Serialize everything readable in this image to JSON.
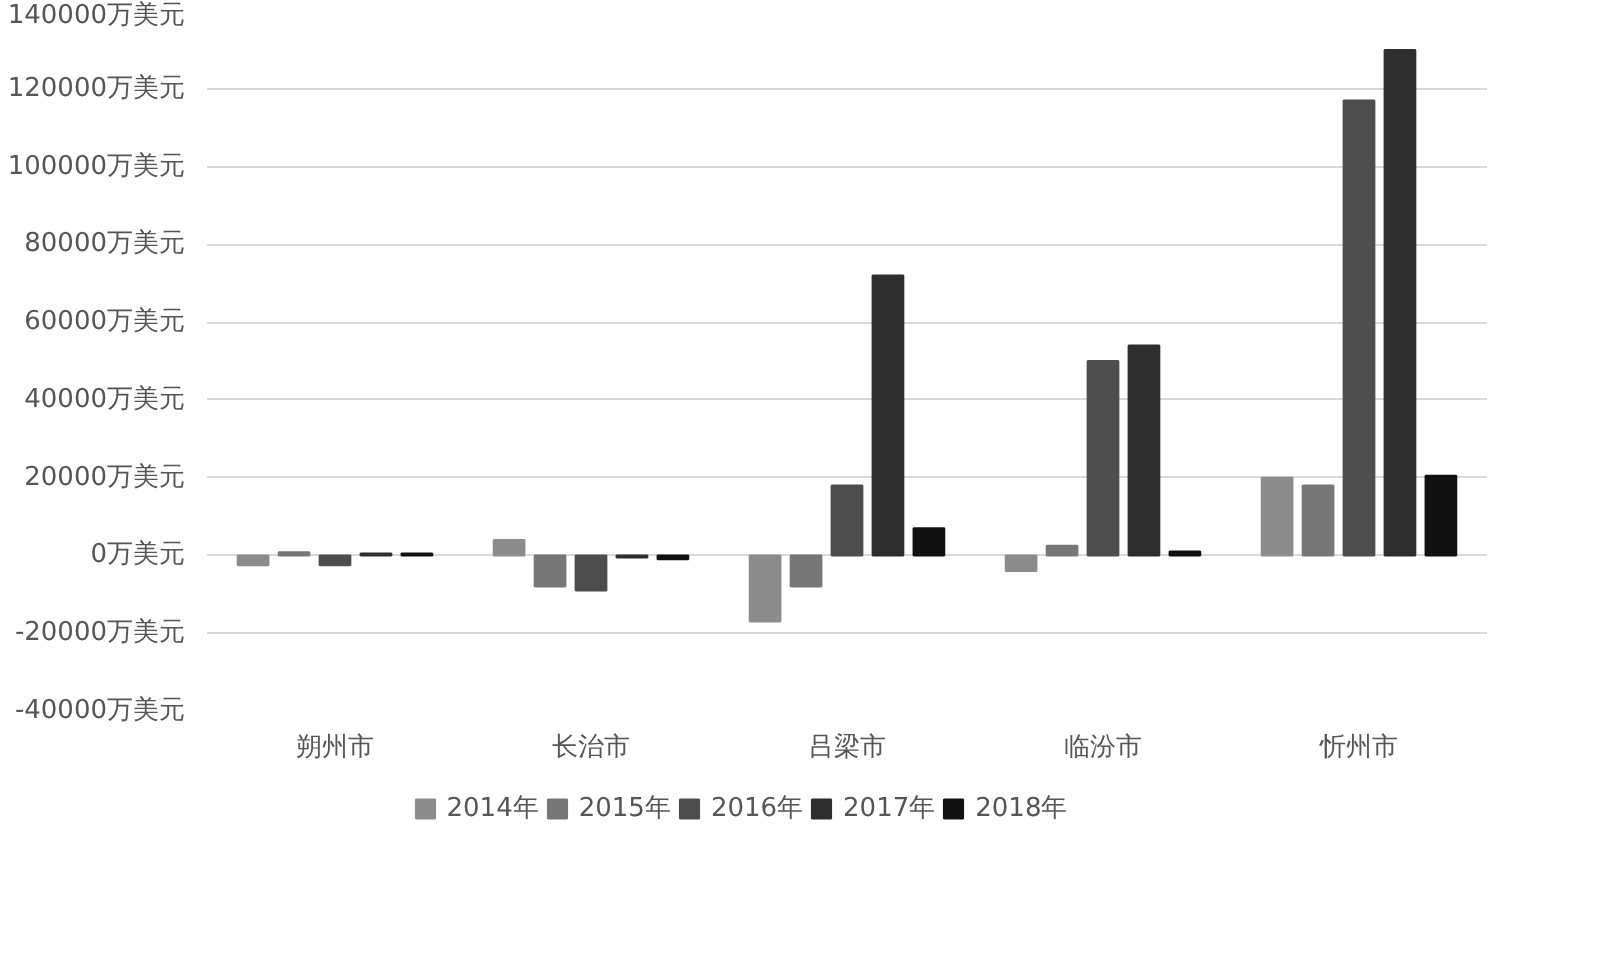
{
  "chart_data": {
    "type": "bar",
    "categories": [
      "朔州市",
      "长治市",
      "吕梁市",
      "临汾市",
      "忻州市"
    ],
    "series": [
      {
        "name": "2014年",
        "color": "#8c8c8c",
        "values": [
          -2500,
          4000,
          -17000,
          -4000,
          20000
        ]
      },
      {
        "name": "2015年",
        "color": "#777777",
        "values": [
          800,
          -8000,
          -8000,
          2500,
          18000
        ]
      },
      {
        "name": "2016年",
        "color": "#4d4d4d",
        "values": [
          -2500,
          -9000,
          18000,
          50000,
          117000
        ]
      },
      {
        "name": "2017年",
        "color": "#2e2e2e",
        "values": [
          500,
          -500,
          72000,
          54000,
          130000
        ]
      },
      {
        "name": "2018年",
        "color": "#111111",
        "values": [
          500,
          -1000,
          7000,
          1000,
          20500
        ]
      }
    ],
    "ylim": [
      -40000,
      140000
    ],
    "yticks": [
      {
        "value": -40000,
        "label": "-40000万美元"
      },
      {
        "value": -20000,
        "label": "-20000万美元"
      },
      {
        "value": 0,
        "label": "0万美元"
      },
      {
        "value": 20000,
        "label": "20000万美元"
      },
      {
        "value": 40000,
        "label": "40000万美元"
      },
      {
        "value": 60000,
        "label": "60000万美元"
      },
      {
        "value": 80000,
        "label": "80000万美元"
      },
      {
        "value": 100000,
        "label": "100000万美元"
      },
      {
        "value": 120000,
        "label": "120000万美元"
      },
      {
        "value": 140000,
        "label": "140000万美元"
      }
    ],
    "grid": "y",
    "legend": "bottom"
  }
}
